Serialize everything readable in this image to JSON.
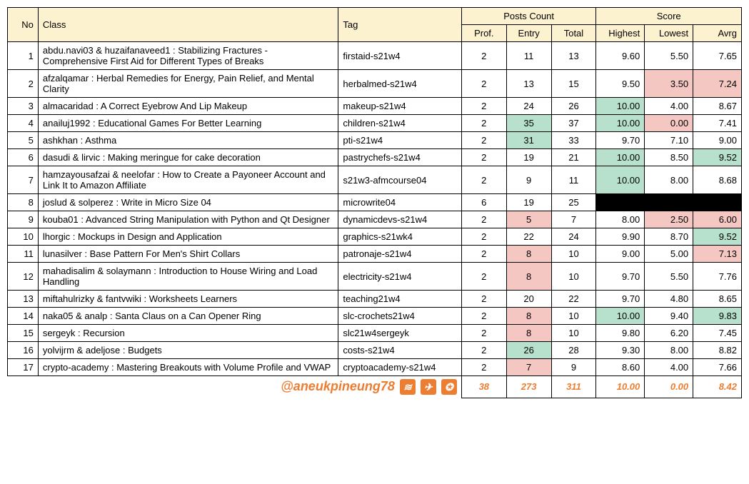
{
  "headers": {
    "no": "No",
    "class": "Class",
    "tag": "Tag",
    "posts_count": "Posts Count",
    "score": "Score",
    "prof": "Prof.",
    "entry": "Entry",
    "total": "Total",
    "highest": "Highest",
    "lowest": "Lowest",
    "avrg": "Avrg"
  },
  "rows": [
    {
      "no": "1",
      "class": "abdu.navi03 & huzaifanaveed1 : Stabilizing Fractures - Comprehensive First Aid for Different Types of Breaks",
      "tag": "firstaid-s21w4",
      "prof": "2",
      "entry": "11",
      "total": "13",
      "highest": "9.60",
      "lowest": "5.50",
      "avrg": "7.65"
    },
    {
      "no": "2",
      "class": "afzalqamar : Herbal Remedies for Energy, Pain Relief, and Mental Clarity",
      "tag": "herbalmed-s21w4",
      "prof": "2",
      "entry": "13",
      "total": "15",
      "highest": "9.50",
      "lowest": "3.50",
      "lowest_hl": "pink",
      "avrg": "7.24",
      "avrg_hl": "pink"
    },
    {
      "no": "3",
      "class": "almacaridad : A Correct Eyebrow And Lip Makeup",
      "tag": "makeup-s21w4",
      "prof": "2",
      "entry": "24",
      "total": "26",
      "highest": "10.00",
      "highest_hl": "green",
      "lowest": "4.00",
      "avrg": "8.67"
    },
    {
      "no": "4",
      "class": "anailuj1992 : Educational Games For Better Learning",
      "tag": "children-s21w4",
      "prof": "2",
      "entry": "35",
      "entry_hl": "green",
      "total": "37",
      "highest": "10.00",
      "highest_hl": "green",
      "lowest": "0.00",
      "lowest_hl": "pink",
      "avrg": "7.41"
    },
    {
      "no": "5",
      "class": "ashkhan : Asthma",
      "tag": "pti-s21w4",
      "prof": "2",
      "entry": "31",
      "entry_hl": "green",
      "total": "33",
      "highest": "9.70",
      "lowest": "7.10",
      "avrg": "9.00"
    },
    {
      "no": "6",
      "class": "dasudi & lirvic : Making meringue for cake decoration",
      "tag": "pastrychefs-s21w4",
      "prof": "2",
      "entry": "19",
      "total": "21",
      "highest": "10.00",
      "highest_hl": "green",
      "lowest": "8.50",
      "avrg": "9.52",
      "avrg_hl": "green"
    },
    {
      "no": "7",
      "class": "hamzayousafzai & neelofar : How to Create a Payoneer Account and Link It to Amazon Affiliate",
      "tag": "s21w3-afmcourse04",
      "prof": "2",
      "entry": "9",
      "total": "11",
      "highest": "10.00",
      "highest_hl": "green",
      "lowest": "8.00",
      "avrg": "8.68"
    },
    {
      "no": "8",
      "class": "joslud & solperez : Write in Micro Size 04",
      "tag": "microwrite04",
      "prof": "6",
      "entry": "19",
      "total": "25",
      "blackout": true
    },
    {
      "no": "9",
      "class": "kouba01 : Advanced String Manipulation with Python and Qt Designer",
      "tag": "dynamicdevs-s21w4",
      "prof": "2",
      "entry": "5",
      "entry_hl": "pink",
      "total": "7",
      "highest": "8.00",
      "lowest": "2.50",
      "lowest_hl": "pink",
      "avrg": "6.00",
      "avrg_hl": "pink"
    },
    {
      "no": "10",
      "class": "lhorgic : Mockups in Design and Application",
      "tag": "graphics-s21wk4",
      "prof": "2",
      "entry": "22",
      "total": "24",
      "highest": "9.90",
      "lowest": "8.70",
      "avrg": "9.52",
      "avrg_hl": "green"
    },
    {
      "no": "11",
      "class": "lunasilver : Base Pattern For Men's Shirt Collars",
      "tag": "patronaje-s21w4",
      "prof": "2",
      "entry": "8",
      "entry_hl": "pink",
      "total": "10",
      "highest": "9.00",
      "lowest": "5.00",
      "avrg": "7.13",
      "avrg_hl": "pink"
    },
    {
      "no": "12",
      "class": "mahadisalim & solaymann : Introduction to House Wiring and Load Handling",
      "tag": "electricity-s21w4",
      "prof": "2",
      "entry": "8",
      "entry_hl": "pink",
      "total": "10",
      "highest": "9.70",
      "lowest": "5.50",
      "avrg": "7.76"
    },
    {
      "no": "13",
      "class": "miftahulrizky & fantvwiki : Worksheets Learners",
      "tag": "teaching21w4",
      "prof": "2",
      "entry": "20",
      "total": "22",
      "highest": "9.70",
      "lowest": "4.80",
      "avrg": "8.65"
    },
    {
      "no": "14",
      "class": "naka05 & analp : Santa Claus on a Can Opener Ring",
      "tag": "slc-crochets21w4",
      "prof": "2",
      "entry": "8",
      "entry_hl": "pink",
      "total": "10",
      "highest": "10.00",
      "highest_hl": "green",
      "lowest": "9.40",
      "avrg": "9.83",
      "avrg_hl": "green"
    },
    {
      "no": "15",
      "class": "sergeyk : Recursion",
      "tag": "slc21w4sergeyk",
      "prof": "2",
      "entry": "8",
      "entry_hl": "pink",
      "total": "10",
      "highest": "9.80",
      "lowest": "6.20",
      "avrg": "7.45"
    },
    {
      "no": "16",
      "class": "yolvijrm & adeljose : Budgets",
      "tag": "costs-s21w4",
      "prof": "2",
      "entry": "26",
      "entry_hl": "green",
      "total": "28",
      "highest": "9.30",
      "lowest": "8.00",
      "avrg": "8.82"
    },
    {
      "no": "17",
      "class": "crypto-academy : Mastering Breakouts with Volume Profile and VWAP",
      "tag": "cryptoacademy-s21w4",
      "prof": "2",
      "entry": "7",
      "entry_hl": "pink",
      "total": "9",
      "highest": "8.60",
      "lowest": "4.00",
      "avrg": "7.66"
    }
  ],
  "totals": {
    "attribution": "@aneukpineung78",
    "prof": "38",
    "entry": "273",
    "total": "311",
    "highest": "10.00",
    "lowest": "0.00",
    "avrg": "8.42"
  },
  "colors": {
    "header_bg": "#fdf2d0",
    "green_hl": "#b7e1cd",
    "pink_hl": "#f4c7c3",
    "black": "#000000",
    "orange": "#ed7d31"
  }
}
